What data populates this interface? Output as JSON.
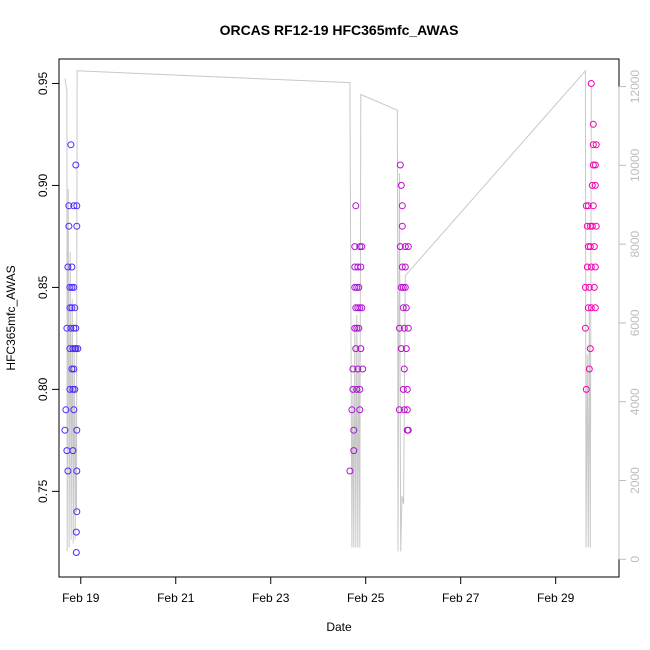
{
  "chart_data": {
    "type": "scatter",
    "title": "ORCAS RF12-19 HFC365mfc_AWAS",
    "xlabel": "Date",
    "ylabel": "HFC365mfc_AWAS",
    "xlim": [
      "2016-02-18 13:00",
      "2016-03-01 08:00"
    ],
    "ylim": [
      0.708,
      0.962
    ],
    "y2lim": [
      -450,
      12700
    ],
    "x_ticks": [
      "Feb 19",
      "Feb 21",
      "Feb 23",
      "Feb 25",
      "Feb 27",
      "Feb 29"
    ],
    "y_ticks": [
      "0.75",
      "0.80",
      "0.85",
      "0.90",
      "0.95"
    ],
    "y2_ticks": [
      "0",
      "2000",
      "4000",
      "6000",
      "8000",
      "10000",
      "12000"
    ],
    "grid": false,
    "colors": {
      "start": "#4a2bff",
      "end": "#ff00aa",
      "altitude_line": "#c8c8c8"
    },
    "series": [
      {
        "marker": "open-circle",
        "points": [
          [
            "2016-02-18 16:00",
            0.78
          ],
          [
            "2016-02-18 16:30",
            0.79
          ],
          [
            "2016-02-18 17:00",
            0.77
          ],
          [
            "2016-02-18 17:30",
            0.76
          ],
          [
            "2016-02-18 17:00",
            0.83
          ],
          [
            "2016-02-18 17:30",
            0.86
          ],
          [
            "2016-02-18 18:00",
            0.89
          ],
          [
            "2016-02-18 18:00",
            0.88
          ],
          [
            "2016-02-18 18:30",
            0.8
          ],
          [
            "2016-02-18 18:30",
            0.82
          ],
          [
            "2016-02-18 18:30",
            0.84
          ],
          [
            "2016-02-18 18:30",
            0.85
          ],
          [
            "2016-02-18 19:00",
            0.92
          ],
          [
            "2016-02-18 19:00",
            0.83
          ],
          [
            "2016-02-18 19:30",
            0.81
          ],
          [
            "2016-02-18 19:30",
            0.84
          ],
          [
            "2016-02-18 19:30",
            0.86
          ],
          [
            "2016-02-18 19:30",
            0.85
          ],
          [
            "2016-02-18 20:00",
            0.82
          ],
          [
            "2016-02-18 20:00",
            0.8
          ],
          [
            "2016-02-18 20:00",
            0.77
          ],
          [
            "2016-02-18 20:30",
            0.79
          ],
          [
            "2016-02-18 20:30",
            0.81
          ],
          [
            "2016-02-18 20:30",
            0.83
          ],
          [
            "2016-02-18 20:30",
            0.85
          ],
          [
            "2016-02-18 20:30",
            0.89
          ],
          [
            "2016-02-18 21:00",
            0.82
          ],
          [
            "2016-02-18 21:00",
            0.8
          ],
          [
            "2016-02-18 21:00",
            0.84
          ],
          [
            "2016-02-18 21:30",
            0.91
          ],
          [
            "2016-02-18 21:30",
            0.83
          ],
          [
            "2016-02-18 21:30",
            0.82
          ],
          [
            "2016-02-18 22:00",
            0.89
          ],
          [
            "2016-02-18 22:00",
            0.88
          ],
          [
            "2016-02-18 22:00",
            0.78
          ],
          [
            "2016-02-18 22:00",
            0.76
          ],
          [
            "2016-02-18 22:00",
            0.74
          ],
          [
            "2016-02-18 21:45",
            0.73
          ],
          [
            "2016-02-18 21:45",
            0.72
          ],
          [
            "2016-02-18 22:30",
            0.82
          ],
          [
            "2016-02-24 16:00",
            0.76
          ],
          [
            "2016-02-24 17:00",
            0.79
          ],
          [
            "2016-02-24 17:30",
            0.81
          ],
          [
            "2016-02-24 17:30",
            0.8
          ],
          [
            "2016-02-24 18:00",
            0.78
          ],
          [
            "2016-02-24 18:00",
            0.77
          ],
          [
            "2016-02-24 18:30",
            0.83
          ],
          [
            "2016-02-24 18:30",
            0.85
          ],
          [
            "2016-02-24 18:30",
            0.86
          ],
          [
            "2016-02-24 18:30",
            0.87
          ],
          [
            "2016-02-24 19:00",
            0.84
          ],
          [
            "2016-02-24 19:00",
            0.82
          ],
          [
            "2016-02-24 19:00",
            0.89
          ],
          [
            "2016-02-24 19:30",
            0.83
          ],
          [
            "2016-02-24 19:30",
            0.85
          ],
          [
            "2016-02-24 19:30",
            0.8
          ],
          [
            "2016-02-24 20:00",
            0.81
          ],
          [
            "2016-02-24 20:00",
            0.84
          ],
          [
            "2016-02-24 20:00",
            0.86
          ],
          [
            "2016-02-24 20:30",
            0.83
          ],
          [
            "2016-02-24 20:30",
            0.85
          ],
          [
            "2016-02-24 21:00",
            0.87
          ],
          [
            "2016-02-24 21:00",
            0.84
          ],
          [
            "2016-02-24 21:00",
            0.79
          ],
          [
            "2016-02-24 21:00",
            0.8
          ],
          [
            "2016-02-24 21:30",
            0.86
          ],
          [
            "2016-02-24 21:30",
            0.82
          ],
          [
            "2016-02-24 22:00",
            0.87
          ],
          [
            "2016-02-24 22:00",
            0.84
          ],
          [
            "2016-02-24 22:30",
            0.81
          ],
          [
            "2016-02-25 17:00",
            0.79
          ],
          [
            "2016-02-25 17:00",
            0.83
          ],
          [
            "2016-02-25 17:30",
            0.87
          ],
          [
            "2016-02-25 17:30",
            0.91
          ],
          [
            "2016-02-25 18:00",
            0.9
          ],
          [
            "2016-02-25 18:00",
            0.85
          ],
          [
            "2016-02-25 18:00",
            0.82
          ],
          [
            "2016-02-25 18:30",
            0.88
          ],
          [
            "2016-02-25 18:30",
            0.89
          ],
          [
            "2016-02-25 18:30",
            0.86
          ],
          [
            "2016-02-25 19:00",
            0.85
          ],
          [
            "2016-02-25 19:00",
            0.84
          ],
          [
            "2016-02-25 19:00",
            0.8
          ],
          [
            "2016-02-25 19:30",
            0.81
          ],
          [
            "2016-02-25 19:30",
            0.79
          ],
          [
            "2016-02-25 19:30",
            0.83
          ],
          [
            "2016-02-25 20:00",
            0.86
          ],
          [
            "2016-02-25 20:00",
            0.85
          ],
          [
            "2016-02-25 20:00",
            0.87
          ],
          [
            "2016-02-25 20:30",
            0.82
          ],
          [
            "2016-02-25 20:30",
            0.84
          ],
          [
            "2016-02-25 21:00",
            0.78
          ],
          [
            "2016-02-25 21:00",
            0.79
          ],
          [
            "2016-02-25 21:00",
            0.8
          ],
          [
            "2016-02-25 21:30",
            0.83
          ],
          [
            "2016-02-25 21:30",
            0.78
          ],
          [
            "2016-02-25 21:30",
            0.87
          ],
          [
            "2016-02-29 15:00",
            0.85
          ],
          [
            "2016-02-29 15:00",
            0.83
          ],
          [
            "2016-02-29 15:30",
            0.8
          ],
          [
            "2016-02-29 15:30",
            0.89
          ],
          [
            "2016-02-29 16:00",
            0.88
          ],
          [
            "2016-02-29 16:00",
            0.86
          ],
          [
            "2016-02-29 16:30",
            0.84
          ],
          [
            "2016-02-29 16:30",
            0.87
          ],
          [
            "2016-02-29 16:30",
            0.89
          ],
          [
            "2016-02-29 17:00",
            0.85
          ],
          [
            "2016-02-29 17:00",
            0.81
          ],
          [
            "2016-02-29 17:30",
            0.82
          ],
          [
            "2016-02-29 17:30",
            0.87
          ],
          [
            "2016-02-29 17:30",
            0.88
          ],
          [
            "2016-02-29 18:00",
            0.95
          ],
          [
            "2016-02-29 18:00",
            0.84
          ],
          [
            "2016-02-29 18:00",
            0.86
          ],
          [
            "2016-02-29 18:30",
            0.9
          ],
          [
            "2016-02-29 18:30",
            0.88
          ],
          [
            "2016-02-29 19:00",
            0.91
          ],
          [
            "2016-02-29 19:00",
            0.89
          ],
          [
            "2016-02-29 19:00",
            0.93
          ],
          [
            "2016-02-29 19:00",
            0.92
          ],
          [
            "2016-02-29 19:30",
            0.85
          ],
          [
            "2016-02-29 19:30",
            0.87
          ],
          [
            "2016-02-29 20:00",
            0.84
          ],
          [
            "2016-02-29 20:00",
            0.86
          ],
          [
            "2016-02-29 20:00",
            0.9
          ],
          [
            "2016-02-29 20:00",
            0.91
          ],
          [
            "2016-02-29 20:30",
            0.88
          ],
          [
            "2016-02-29 20:30",
            0.92
          ]
        ]
      },
      {
        "axis": "right",
        "type": "line",
        "points": [
          [
            "2016-02-18 16:00",
            12200
          ],
          [
            "2016-02-18 17:00",
            11900
          ],
          [
            "2016-02-18 17:10",
            200
          ],
          [
            "2016-02-18 17:40",
            9400
          ],
          [
            "2016-02-18 18:10",
            300
          ],
          [
            "2016-02-18 18:40",
            7800
          ],
          [
            "2016-02-18 19:10",
            500
          ],
          [
            "2016-02-18 19:40",
            6600
          ],
          [
            "2016-02-18 20:10",
            400
          ],
          [
            "2016-02-18 20:40",
            5400
          ],
          [
            "2016-02-18 21:10",
            500
          ],
          [
            "2016-02-18 21:40",
            3800
          ],
          [
            "2016-02-18 21:50",
            1200
          ],
          [
            "2016-02-18 22:10",
            12400
          ],
          [
            "2016-02-24 16:00",
            12100
          ],
          [
            "2016-02-24 17:00",
            300
          ],
          [
            "2016-02-24 17:30",
            4400
          ],
          [
            "2016-02-24 18:00",
            300
          ],
          [
            "2016-02-24 18:30",
            5800
          ],
          [
            "2016-02-24 19:00",
            300
          ],
          [
            "2016-02-24 19:30",
            6200
          ],
          [
            "2016-02-24 20:00",
            300
          ],
          [
            "2016-02-24 20:30",
            5400
          ],
          [
            "2016-02-24 21:00",
            300
          ],
          [
            "2016-02-24 21:30",
            11800
          ],
          [
            "2016-02-25 16:00",
            11400
          ],
          [
            "2016-02-25 16:20",
            200
          ],
          [
            "2016-02-25 17:00",
            9800
          ],
          [
            "2016-02-25 17:40",
            200
          ],
          [
            "2016-02-25 18:20",
            1600
          ],
          [
            "2016-02-25 19:10",
            1400
          ],
          [
            "2016-02-25 20:00",
            7200
          ],
          [
            "2016-02-29 15:00",
            12400
          ],
          [
            "2016-02-29 15:20",
            300
          ],
          [
            "2016-02-29 16:00",
            5200
          ],
          [
            "2016-02-29 16:30",
            300
          ],
          [
            "2016-02-29 17:00",
            6400
          ],
          [
            "2016-02-29 17:30",
            300
          ],
          [
            "2016-02-29 18:00",
            12000
          ]
        ]
      }
    ]
  }
}
